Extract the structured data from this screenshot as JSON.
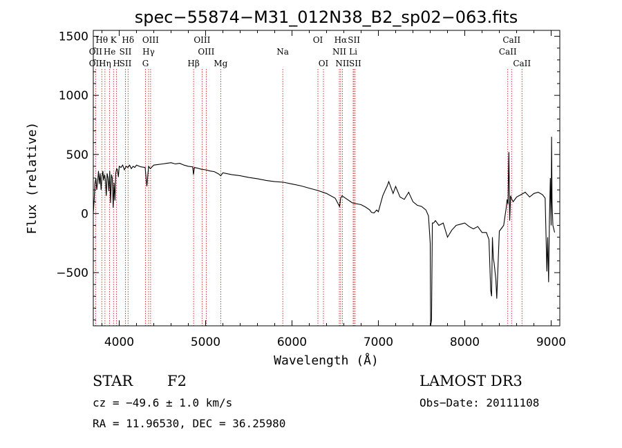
{
  "chart_data": {
    "type": "line",
    "title": "spec−55874−M31_012N38_B2_sp02−063.fits",
    "xlabel": "Wavelength (Å)",
    "ylabel": "Flux (relative)",
    "xlim": [
      3700,
      9100
    ],
    "ylim": [
      -950,
      1550
    ],
    "xticks": [
      4000,
      5000,
      6000,
      7000,
      8000,
      9000
    ],
    "yticks": [
      -500,
      0,
      500,
      1000,
      1500
    ],
    "ytick_labels": [
      "−500",
      "0",
      "500",
      "1000",
      "1500"
    ],
    "grid": false,
    "line_color": "#000000",
    "marker_color": "#cc0000",
    "spectral_lines": [
      {
        "label": "Hθ",
        "x": 3798,
        "row": 1
      },
      {
        "label": "OII",
        "x": 3727,
        "row": 2
      },
      {
        "label": "OII",
        "x": 3727,
        "row": 3
      },
      {
        "label": "He",
        "x": 3889,
        "row": 2
      },
      {
        "label": "Hη",
        "x": 3835,
        "row": 3
      },
      {
        "label": "K",
        "x": 3934,
        "row": 1
      },
      {
        "label": "H",
        "x": 3969,
        "row": 3
      },
      {
        "label": "SII",
        "x": 4072,
        "row": 2
      },
      {
        "label": "SII",
        "x": 4072,
        "row": 3
      },
      {
        "label": "Hδ",
        "x": 4102,
        "row": 1
      },
      {
        "label": "OIII",
        "x": 4363,
        "row": 1
      },
      {
        "label": "Hγ",
        "x": 4340,
        "row": 2
      },
      {
        "label": "G",
        "x": 4304,
        "row": 3
      },
      {
        "label": "OIII",
        "x": 4959,
        "row": 1
      },
      {
        "label": "OIII",
        "x": 5007,
        "row": 2
      },
      {
        "label": "Hβ",
        "x": 4861,
        "row": 3
      },
      {
        "label": "Mg",
        "x": 5175,
        "row": 3
      },
      {
        "label": "Na",
        "x": 5893,
        "row": 2
      },
      {
        "label": "OI",
        "x": 6300,
        "row": 1
      },
      {
        "label": "OI",
        "x": 6364,
        "row": 3
      },
      {
        "label": "Hα",
        "x": 6563,
        "row": 1
      },
      {
        "label": "NII",
        "x": 6548,
        "row": 2
      },
      {
        "label": "NII",
        "x": 6583,
        "row": 3
      },
      {
        "label": "SII",
        "x": 6717,
        "row": 1
      },
      {
        "label": "Li",
        "x": 6708,
        "row": 2
      },
      {
        "label": "SII",
        "x": 6731,
        "row": 3
      },
      {
        "label": "CaII",
        "x": 8542,
        "row": 1
      },
      {
        "label": "CaII",
        "x": 8498,
        "row": 2
      },
      {
        "label": "CaII",
        "x": 8662,
        "row": 3
      }
    ],
    "series": [
      {
        "x": [
          3700,
          3710,
          3720,
          3730,
          3740,
          3750,
          3760,
          3770,
          3780,
          3790,
          3800,
          3810,
          3820,
          3830,
          3840,
          3850,
          3860,
          3870,
          3880,
          3890,
          3900,
          3910,
          3920,
          3930,
          3940,
          3950,
          3960,
          3970,
          3980,
          3990,
          4000,
          4020,
          4040,
          4060,
          4080,
          4100,
          4120,
          4140,
          4160,
          4180,
          4200,
          4250,
          4300,
          4320,
          4340,
          4360,
          4400,
          4450,
          4500,
          4550,
          4600,
          4650,
          4700,
          4750,
          4800,
          4850,
          4860,
          4870,
          4900,
          4950,
          5000,
          5050,
          5100,
          5150,
          5175,
          5200,
          5300,
          5400,
          5500,
          5600,
          5700,
          5800,
          5900,
          6000,
          6100,
          6200,
          6300,
          6400,
          6500,
          6550,
          6563,
          6580,
          6600,
          6700,
          6800,
          6850,
          6900,
          6920,
          6950,
          6980,
          7000,
          7020,
          7050,
          7080,
          7100,
          7120,
          7150,
          7170,
          7200,
          7250,
          7300,
          7350,
          7400,
          7450,
          7500,
          7550,
          7580,
          7600,
          7605,
          7615,
          7625,
          7640,
          7660,
          7700,
          7750,
          7800,
          7850,
          7900,
          7950,
          8000,
          8050,
          8100,
          8150,
          8200,
          8250,
          8280,
          8300,
          8310,
          8320,
          8330,
          8340,
          8360,
          8370,
          8400,
          8450,
          8480,
          8490,
          8500,
          8510,
          8520,
          8530,
          8545,
          8560,
          8600,
          8650,
          8700,
          8750,
          8800,
          8850,
          8900,
          8930,
          8950,
          8960,
          8970,
          8980,
          8990,
          9000,
          9005,
          9010,
          9020,
          9030,
          9040
        ],
        "y": [
          0,
          120,
          260,
          300,
          200,
          270,
          360,
          250,
          340,
          200,
          310,
          360,
          280,
          330,
          290,
          150,
          340,
          300,
          190,
          360,
          90,
          330,
          300,
          50,
          260,
          110,
          340,
          380,
          370,
          310,
          400,
          390,
          410,
          370,
          400,
          390,
          410,
          380,
          400,
          390,
          410,
          395,
          390,
          230,
          400,
          380,
          410,
          415,
          420,
          425,
          430,
          420,
          425,
          410,
          400,
          395,
          330,
          390,
          385,
          375,
          370,
          360,
          355,
          335,
          320,
          345,
          330,
          320,
          305,
          295,
          280,
          270,
          265,
          250,
          235,
          215,
          195,
          170,
          130,
          60,
          130,
          150,
          140,
          90,
          75,
          55,
          30,
          10,
          5,
          30,
          15,
          70,
          150,
          200,
          230,
          270,
          210,
          170,
          230,
          140,
          120,
          180,
          100,
          70,
          60,
          30,
          -20,
          -250,
          -950,
          -900,
          -80,
          -80,
          -60,
          -100,
          -80,
          -200,
          -140,
          -100,
          -90,
          -80,
          -110,
          -130,
          -110,
          -160,
          -160,
          -220,
          -650,
          -700,
          -200,
          -380,
          -420,
          -560,
          -720,
          -150,
          -100,
          50,
          120,
          80,
          520,
          -60,
          150,
          120,
          100,
          140,
          160,
          180,
          140,
          170,
          180,
          160,
          130,
          -490,
          -200,
          -580,
          -50,
          300,
          -100,
          650,
          100,
          -100,
          -130,
          -160
        ]
      }
    ]
  },
  "info": {
    "object_type": "STAR",
    "subclass": "F2",
    "survey": "LAMOST DR3",
    "redshift": "cz = −49.6 ± 1.0 km/s",
    "obs_date": "Obs−Date: 20111108",
    "coords": "RA =  11.96530, DEC =  36.25980"
  }
}
